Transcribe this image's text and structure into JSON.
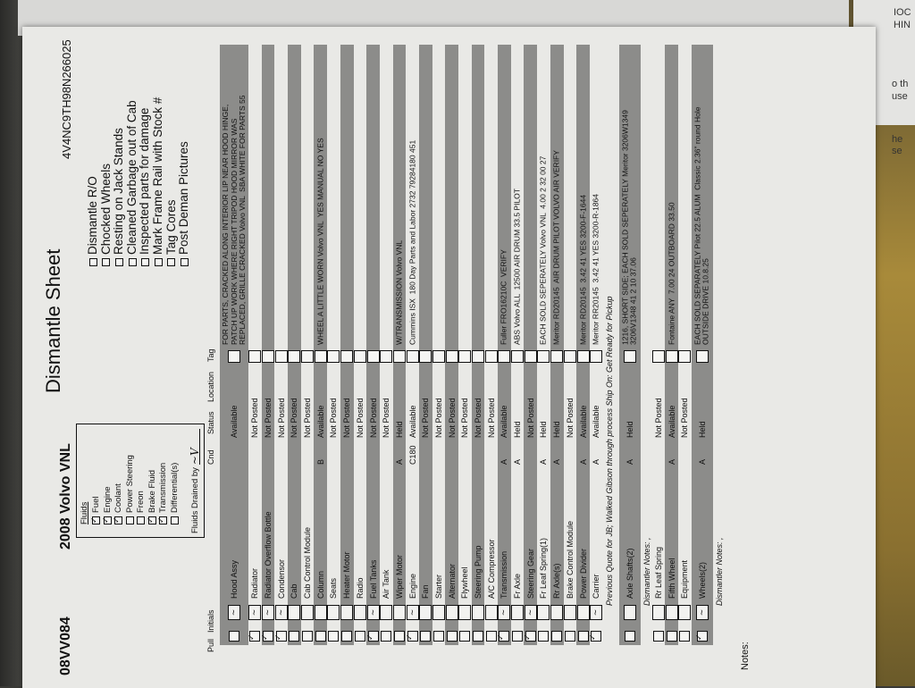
{
  "header": {
    "stock_no": "08VV084",
    "vehicle": "2008 Volvo VNL",
    "title": "Dismantle Sheet",
    "vin": "4V4NC9TH98N266025"
  },
  "checklist": [
    "Dismantle R/O",
    "Chocked Wheels",
    "Resting on Jack Stands",
    "Cleaned Garbage out of Cab",
    "Inspected parts for damage",
    "Mark Frame Rail with Stock #",
    "Tag Cores",
    "Post Deman Pictures"
  ],
  "fluids": {
    "title": "Fluids",
    "items": [
      {
        "label": "Fuel",
        "checked": true
      },
      {
        "label": "Engine",
        "checked": true
      },
      {
        "label": "Coolant",
        "checked": true
      },
      {
        "label": "Power Steering",
        "checked": false
      },
      {
        "label": "Freon",
        "checked": false
      },
      {
        "label": "Brake Fluid",
        "checked": true
      },
      {
        "label": "Transmission",
        "checked": true
      },
      {
        "label": "Differential(s)",
        "checked": false
      }
    ],
    "drained_by_label": "Fluids Drained by"
  },
  "table": {
    "headers": {
      "pull": "Pull",
      "initials": "Initials",
      "cnd": "Cnd",
      "status": "Status",
      "location": "Location",
      "tag": "Tag"
    },
    "rows": [
      {
        "name": "Hood Assy",
        "cnd": "",
        "status": "Available",
        "pulled": false,
        "initialed": true,
        "gray": true,
        "tall": true,
        "note": "FOR PARTS, CRACKED ALONG INTERIOR LIP NEAR HOOD HINGE,\nPATCH UP WORK WHERE RIGHT TRIPOD HOOD MIRROR WAS\nREPLACED, GRILLE CRACKED Volvo VNL  SBA WHITE FOR PARTS 55"
      },
      {
        "name": "Radiator",
        "cnd": "",
        "status": "Not Posted",
        "pulled": true,
        "initialed": true,
        "gray": false,
        "note": ""
      },
      {
        "name": "Radiator Overflow Bottle",
        "cnd": "",
        "status": "Not Posted",
        "pulled": true,
        "initialed": true,
        "gray": true,
        "note": ""
      },
      {
        "name": "Condensor",
        "cnd": "",
        "status": "Not Posted",
        "pulled": true,
        "initialed": true,
        "gray": false,
        "note": ""
      },
      {
        "name": "Cab",
        "cnd": "",
        "status": "Not Posted",
        "pulled": false,
        "initialed": false,
        "gray": true,
        "note": ""
      },
      {
        "name": "Cab Control Module",
        "cnd": "",
        "status": "Not Posted",
        "pulled": false,
        "initialed": false,
        "gray": false,
        "note": ""
      },
      {
        "name": "Column",
        "cnd": "B",
        "status": "Available",
        "pulled": false,
        "initialed": false,
        "gray": true,
        "note": "WHEEL A LITTLE WORN Volvo VNL  YES MANUAL NO YES"
      },
      {
        "name": "Seats",
        "cnd": "",
        "status": "Not Posted",
        "pulled": false,
        "initialed": false,
        "gray": false,
        "note": ""
      },
      {
        "name": "Heater Motor",
        "cnd": "",
        "status": "Not Posted",
        "pulled": false,
        "initialed": false,
        "gray": true,
        "note": ""
      },
      {
        "name": "Radio",
        "cnd": "",
        "status": "Not Posted",
        "pulled": false,
        "initialed": false,
        "gray": false,
        "note": ""
      },
      {
        "name": "Fuel Tanks",
        "cnd": "",
        "status": "Not Posted",
        "pulled": true,
        "initialed": true,
        "gray": true,
        "note": ""
      },
      {
        "name": "Air Tank",
        "cnd": "",
        "status": "Not Posted",
        "pulled": false,
        "initialed": false,
        "gray": false,
        "note": ""
      },
      {
        "name": "Wiper Motor",
        "cnd": "A",
        "status": "Held",
        "pulled": false,
        "initialed": false,
        "gray": true,
        "note": "W/TRANSMISSION Volvo VNL"
      },
      {
        "name": "Engine",
        "cnd": "C180",
        "status": "Available",
        "pulled": true,
        "initialed": true,
        "gray": false,
        "note": "Cummins ISX  180 Day Parts and Labor 2732 79284180 451"
      },
      {
        "name": "Fan",
        "cnd": "",
        "status": "Not Posted",
        "pulled": false,
        "initialed": false,
        "gray": true,
        "note": ""
      },
      {
        "name": "Starter",
        "cnd": "",
        "status": "Not Posted",
        "pulled": false,
        "initialed": false,
        "gray": false,
        "note": ""
      },
      {
        "name": "Alternator",
        "cnd": "",
        "status": "Not Posted",
        "pulled": false,
        "initialed": false,
        "gray": true,
        "note": ""
      },
      {
        "name": "Flywheel",
        "cnd": "",
        "status": "Not Posted",
        "pulled": false,
        "initialed": false,
        "gray": false,
        "note": ""
      },
      {
        "name": "Steering Pump",
        "cnd": "",
        "status": "Not Posted",
        "pulled": false,
        "initialed": false,
        "gray": true,
        "note": ""
      },
      {
        "name": "A/C Compressor",
        "cnd": "",
        "status": "Not Posted",
        "pulled": false,
        "initialed": false,
        "gray": false,
        "note": ""
      },
      {
        "name": "Transmission",
        "cnd": "A",
        "status": "Available",
        "pulled": true,
        "initialed": true,
        "gray": true,
        "note": "Fuller FRO16210C  VERIFY"
      },
      {
        "name": "Fr Axle",
        "cnd": "A",
        "status": "Held",
        "pulled": false,
        "initialed": false,
        "gray": false,
        "note": "ABS Volvo ALL  12500 AIR DRUM 33.5 PILOT"
      },
      {
        "name": "Steering Gear",
        "cnd": "",
        "status": "Not Posted",
        "pulled": true,
        "initialed": true,
        "gray": true,
        "note": ""
      },
      {
        "name": "Fr Leaf Spring(1)",
        "cnd": "A",
        "status": "Held",
        "pulled": false,
        "initialed": false,
        "gray": false,
        "note": "EACH SOLD SEPERATELY Volvo VNL  4.00 2 32 00 27"
      },
      {
        "name": "Rr Axle(s)",
        "cnd": "A",
        "status": "Held",
        "pulled": false,
        "initialed": false,
        "gray": true,
        "note": "Meritor RD20145  AIR DRUM PILOT VOLVO AIR VERIFY"
      },
      {
        "name": "Brake Control Module",
        "cnd": "",
        "status": "Not Posted",
        "pulled": false,
        "initialed": false,
        "gray": false,
        "note": ""
      },
      {
        "name": "Power Divider",
        "cnd": "A",
        "status": "Available",
        "pulled": false,
        "initialed": false,
        "gray": true,
        "note": "Meritor RD20145  3.42 41 YES 3200-F-1644"
      },
      {
        "name": "Carrier",
        "cnd": "A",
        "status": "Available",
        "pulled": true,
        "initialed": true,
        "gray": false,
        "note": "Meritor RR20145  3.42 41 YES 3200-R-1864"
      }
    ],
    "quote_line": "Previous Quote for JB; Walked Gibson through process Ship On: Get Ready for Pickup",
    "rows2": [
      {
        "name": "Axle Shafts(2)",
        "cnd": "A",
        "status": "Held",
        "pulled": false,
        "initialed": false,
        "gray": true,
        "tall": true,
        "note": "1216, SHORT SIDE; EACH SOLD SEPERATELY Meritor 3206W1349\n3206V1348 41 2 10 37.06"
      }
    ],
    "dismantler_notes_1": "Dismantler Notes: ,",
    "rows3": [
      {
        "name": "Rr Leaf Spring",
        "cnd": "",
        "status": "Not Posted",
        "pulled": false,
        "initialed": false,
        "gray": false,
        "note": ""
      },
      {
        "name": "Fifth Wheel",
        "cnd": "A",
        "status": "Available",
        "pulled": false,
        "initialed": false,
        "gray": true,
        "note": "Fontaine ANY  7.00 24 OUTBOARD 33.50"
      },
      {
        "name": "Equipment",
        "cnd": "",
        "status": "Not Posted",
        "pulled": false,
        "initialed": false,
        "gray": false,
        "note": ""
      },
      {
        "name": "Wheels(2)",
        "cnd": "A",
        "status": "Held",
        "pulled": true,
        "initialed": true,
        "gray": true,
        "tall": true,
        "note": "EACH SOLD SEPARATELY Pilot 22.5 ALUM  Classic 2.36\" round Hole\nOUTSIDE DRIVE 10.8.25"
      }
    ],
    "dismantler_notes_2": "Dismantler Notes: ,"
  },
  "notes_label": "Notes:",
  "background_fragments": [
    "IOC",
    "HIN",
    "he",
    "se",
    "o th",
    "use"
  ],
  "colors": {
    "paper": "#e9e9e6",
    "stripe": "#8c8c8a",
    "ink": "#111111"
  }
}
